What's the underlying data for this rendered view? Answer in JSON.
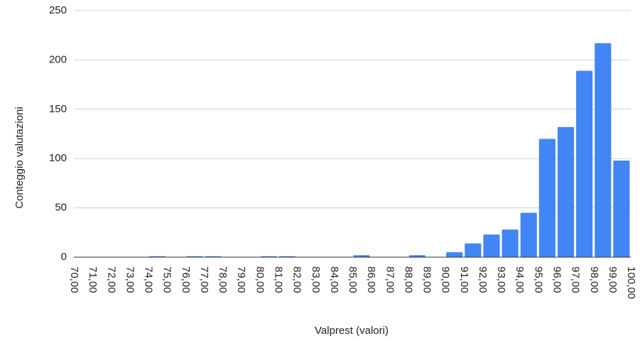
{
  "chart_data": {
    "type": "histogram",
    "xlabel": "Valprest (valori)",
    "ylabel": "Conteggio valutazioni",
    "bins": [
      70,
      71,
      72,
      73,
      74,
      75,
      76,
      77,
      78,
      79,
      80,
      81,
      82,
      83,
      84,
      85,
      86,
      87,
      88,
      89,
      90,
      91,
      92,
      93,
      94,
      95,
      96,
      97,
      98,
      99,
      100
    ],
    "values": [
      0,
      0,
      0,
      0,
      1,
      0,
      1,
      1,
      0,
      0,
      1,
      1,
      0,
      0,
      0,
      2,
      0,
      0,
      2,
      0,
      5,
      14,
      23,
      28,
      45,
      120,
      132,
      189,
      217,
      98
    ],
    "color": "#4285f4",
    "xlim": [
      70,
      100
    ],
    "xticks": [
      {
        "value": 70,
        "label": "70,00"
      },
      {
        "value": 71,
        "label": "71,00"
      },
      {
        "value": 72,
        "label": "72,00"
      },
      {
        "value": 73,
        "label": "73,00"
      },
      {
        "value": 74,
        "label": "74,00"
      },
      {
        "value": 75,
        "label": "75,00"
      },
      {
        "value": 76,
        "label": "76,00"
      },
      {
        "value": 77,
        "label": "77,00"
      },
      {
        "value": 78,
        "label": "78,00"
      },
      {
        "value": 79,
        "label": "79,00"
      },
      {
        "value": 80,
        "label": "80,00"
      },
      {
        "value": 81,
        "label": "81,00"
      },
      {
        "value": 82,
        "label": "82,00"
      },
      {
        "value": 83,
        "label": "83,00"
      },
      {
        "value": 84,
        "label": "84,00"
      },
      {
        "value": 85,
        "label": "85,00"
      },
      {
        "value": 86,
        "label": "86,00"
      },
      {
        "value": 87,
        "label": "87,00"
      },
      {
        "value": 88,
        "label": "88,00"
      },
      {
        "value": 89,
        "label": "89,00"
      },
      {
        "value": 90,
        "label": "90,00"
      },
      {
        "value": 91,
        "label": "91,00"
      },
      {
        "value": 92,
        "label": "92,00"
      },
      {
        "value": 93,
        "label": "93,00"
      },
      {
        "value": 94,
        "label": "94,00"
      },
      {
        "value": 95,
        "label": "95,00"
      },
      {
        "value": 96,
        "label": "96,00"
      },
      {
        "value": 97,
        "label": "97,00"
      },
      {
        "value": 98,
        "label": "98,00"
      },
      {
        "value": 99,
        "label": "99,00"
      },
      {
        "value": 100,
        "label": "100,00"
      }
    ],
    "ylim": [
      0,
      250
    ],
    "yticks": [
      0,
      50,
      100,
      150,
      200,
      250
    ],
    "grid": true
  }
}
